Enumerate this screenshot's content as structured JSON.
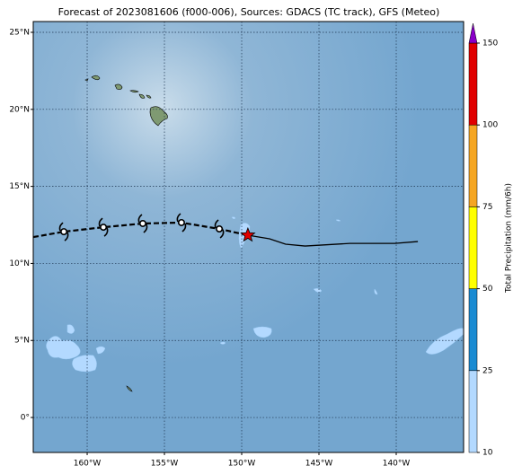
{
  "chart_data": {
    "type": "map",
    "title": "Forecast of 2023081606 (f000-006), Sources: GDACS (TC track), GFS (Meteo)",
    "xlim": [
      -163.49,
      -135.64
    ],
    "ylim": [
      -2.27,
      25.7
    ],
    "xticks": [
      {
        "value": -160,
        "label": "160°W"
      },
      {
        "value": -155,
        "label": "155°W"
      },
      {
        "value": -150,
        "label": "150°W"
      },
      {
        "value": -145,
        "label": "145°W"
      },
      {
        "value": -140,
        "label": "140°W"
      }
    ],
    "yticks": [
      {
        "value": 0,
        "label": "0°"
      },
      {
        "value": 5,
        "label": "5°N"
      },
      {
        "value": 10,
        "label": "10°N"
      },
      {
        "value": 15,
        "label": "15°N"
      },
      {
        "value": 20,
        "label": "20°N"
      },
      {
        "value": 25,
        "label": "25°N"
      }
    ],
    "grid": true,
    "track": {
      "past": {
        "lon": [
          -163.49,
          -161.51,
          -158.95,
          -156.4,
          -153.9,
          -151.45,
          -149.6
        ],
        "lat": [
          11.71,
          12.06,
          12.35,
          12.59,
          12.65,
          12.24,
          11.83
        ]
      },
      "forecast": {
        "lon": [
          -149.6,
          -148.2,
          -147.16,
          -145.9,
          -143,
          -140.1,
          -138.6
        ],
        "lat": [
          11.83,
          11.6,
          11.25,
          11.13,
          11.3,
          11.3,
          11.42
        ]
      },
      "symbols": {
        "lon": [
          -161.51,
          -158.95,
          -156.4,
          -153.9,
          -151.45
        ],
        "lat": [
          12.06,
          12.35,
          12.59,
          12.65,
          12.24
        ]
      },
      "current": {
        "lon": -149.6,
        "lat": 11.83
      },
      "color": "#000000",
      "star_color": "#e00000"
    },
    "colorbar": {
      "label": "Total Precipitation (mm/6h)",
      "ticks": [
        10,
        25,
        50,
        75,
        100,
        150
      ],
      "colors": [
        "#b3d9ff",
        "#1a8bd2",
        "#ffff00",
        "#f5a623",
        "#e00000",
        "#8a00c8"
      ]
    }
  }
}
